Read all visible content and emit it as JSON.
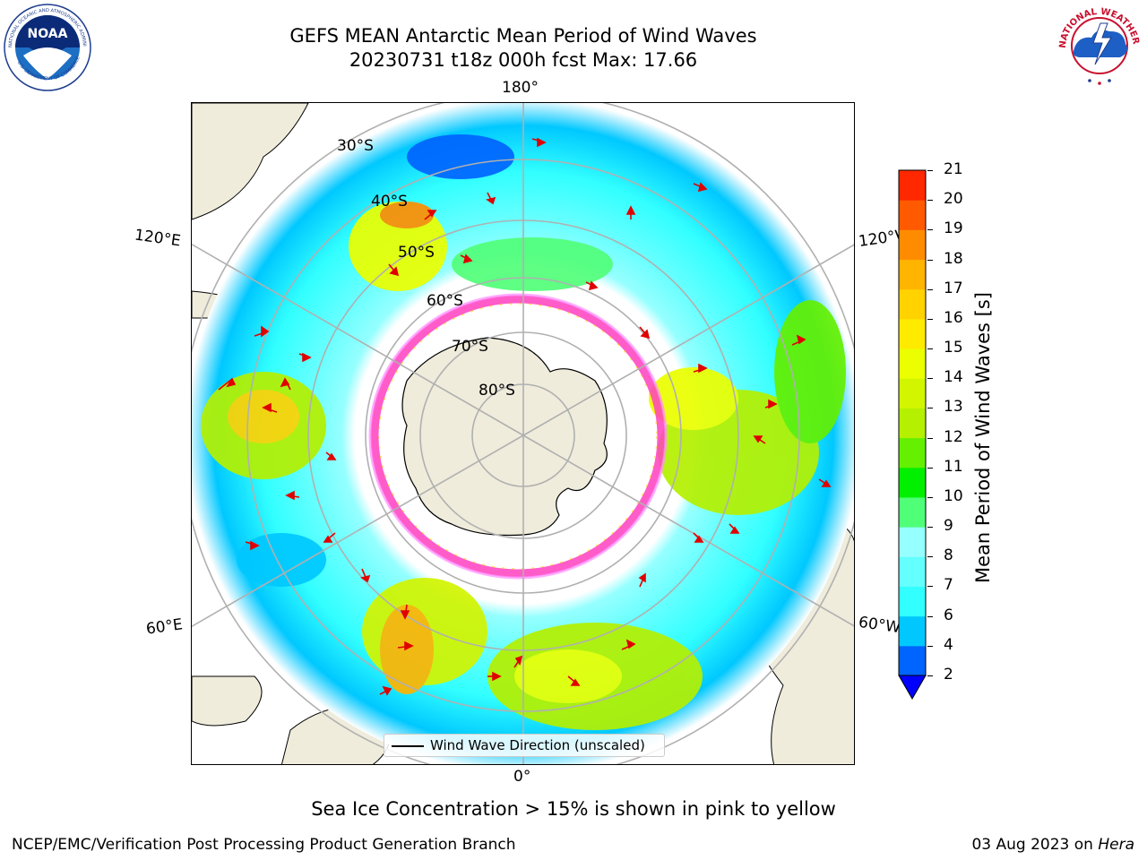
{
  "header": {
    "title_line1": "GEFS MEAN Antarctic Mean Period of Wind Waves",
    "title_line2": "20230731 t18z 000h fcst   Max: 17.66"
  },
  "logos": {
    "left": {
      "icon": "noaa-logo-icon",
      "text": "NOAA",
      "ring_text": "NATIONAL OCEANIC AND ATMOSPHERIC ADMINISTRATION · U.S. DEPARTMENT OF COMMERCE"
    },
    "right": {
      "icon": "nws-logo-icon",
      "ring_text": "NATIONAL WEATHER SERVICE"
    }
  },
  "map": {
    "projection_labels": {
      "top": "180°",
      "bottom": "0°",
      "left_upper": "120°E",
      "left_lower": "60°E",
      "right_upper": "120°W",
      "right_lower": "60°W"
    },
    "latitude_labels": [
      "30°S",
      "40°S",
      "50°S",
      "60°S",
      "70°S",
      "80°S"
    ],
    "legend_label": "Wind Wave Direction (unscaled)"
  },
  "colorbar": {
    "label": "Mean Period of Wind Waves [s]",
    "ticks": [
      "2",
      "4",
      "6",
      "7",
      "8",
      "9",
      "10",
      "11",
      "12",
      "13",
      "14",
      "15",
      "16",
      "17",
      "18",
      "19",
      "20",
      "21"
    ],
    "colors": [
      "#0064ff",
      "#00c8ff",
      "#32ffff",
      "#64ffff",
      "#96ffff",
      "#50ff78",
      "#00f000",
      "#64f000",
      "#b4f000",
      "#d2f500",
      "#ebff00",
      "#ffeb00",
      "#ffd200",
      "#ffb400",
      "#ff8c00",
      "#ff5a00",
      "#ff2800"
    ],
    "under_color": "#0000ff"
  },
  "footer": {
    "ice_note": "Sea Ice Concentration > 15% is shown in pink to yellow",
    "credit_left": "NCEP/EMC/Verification Post Processing Product Generation Branch",
    "credit_right_prefix": "03 Aug 2023 on ",
    "credit_right_host": "Hera"
  }
}
